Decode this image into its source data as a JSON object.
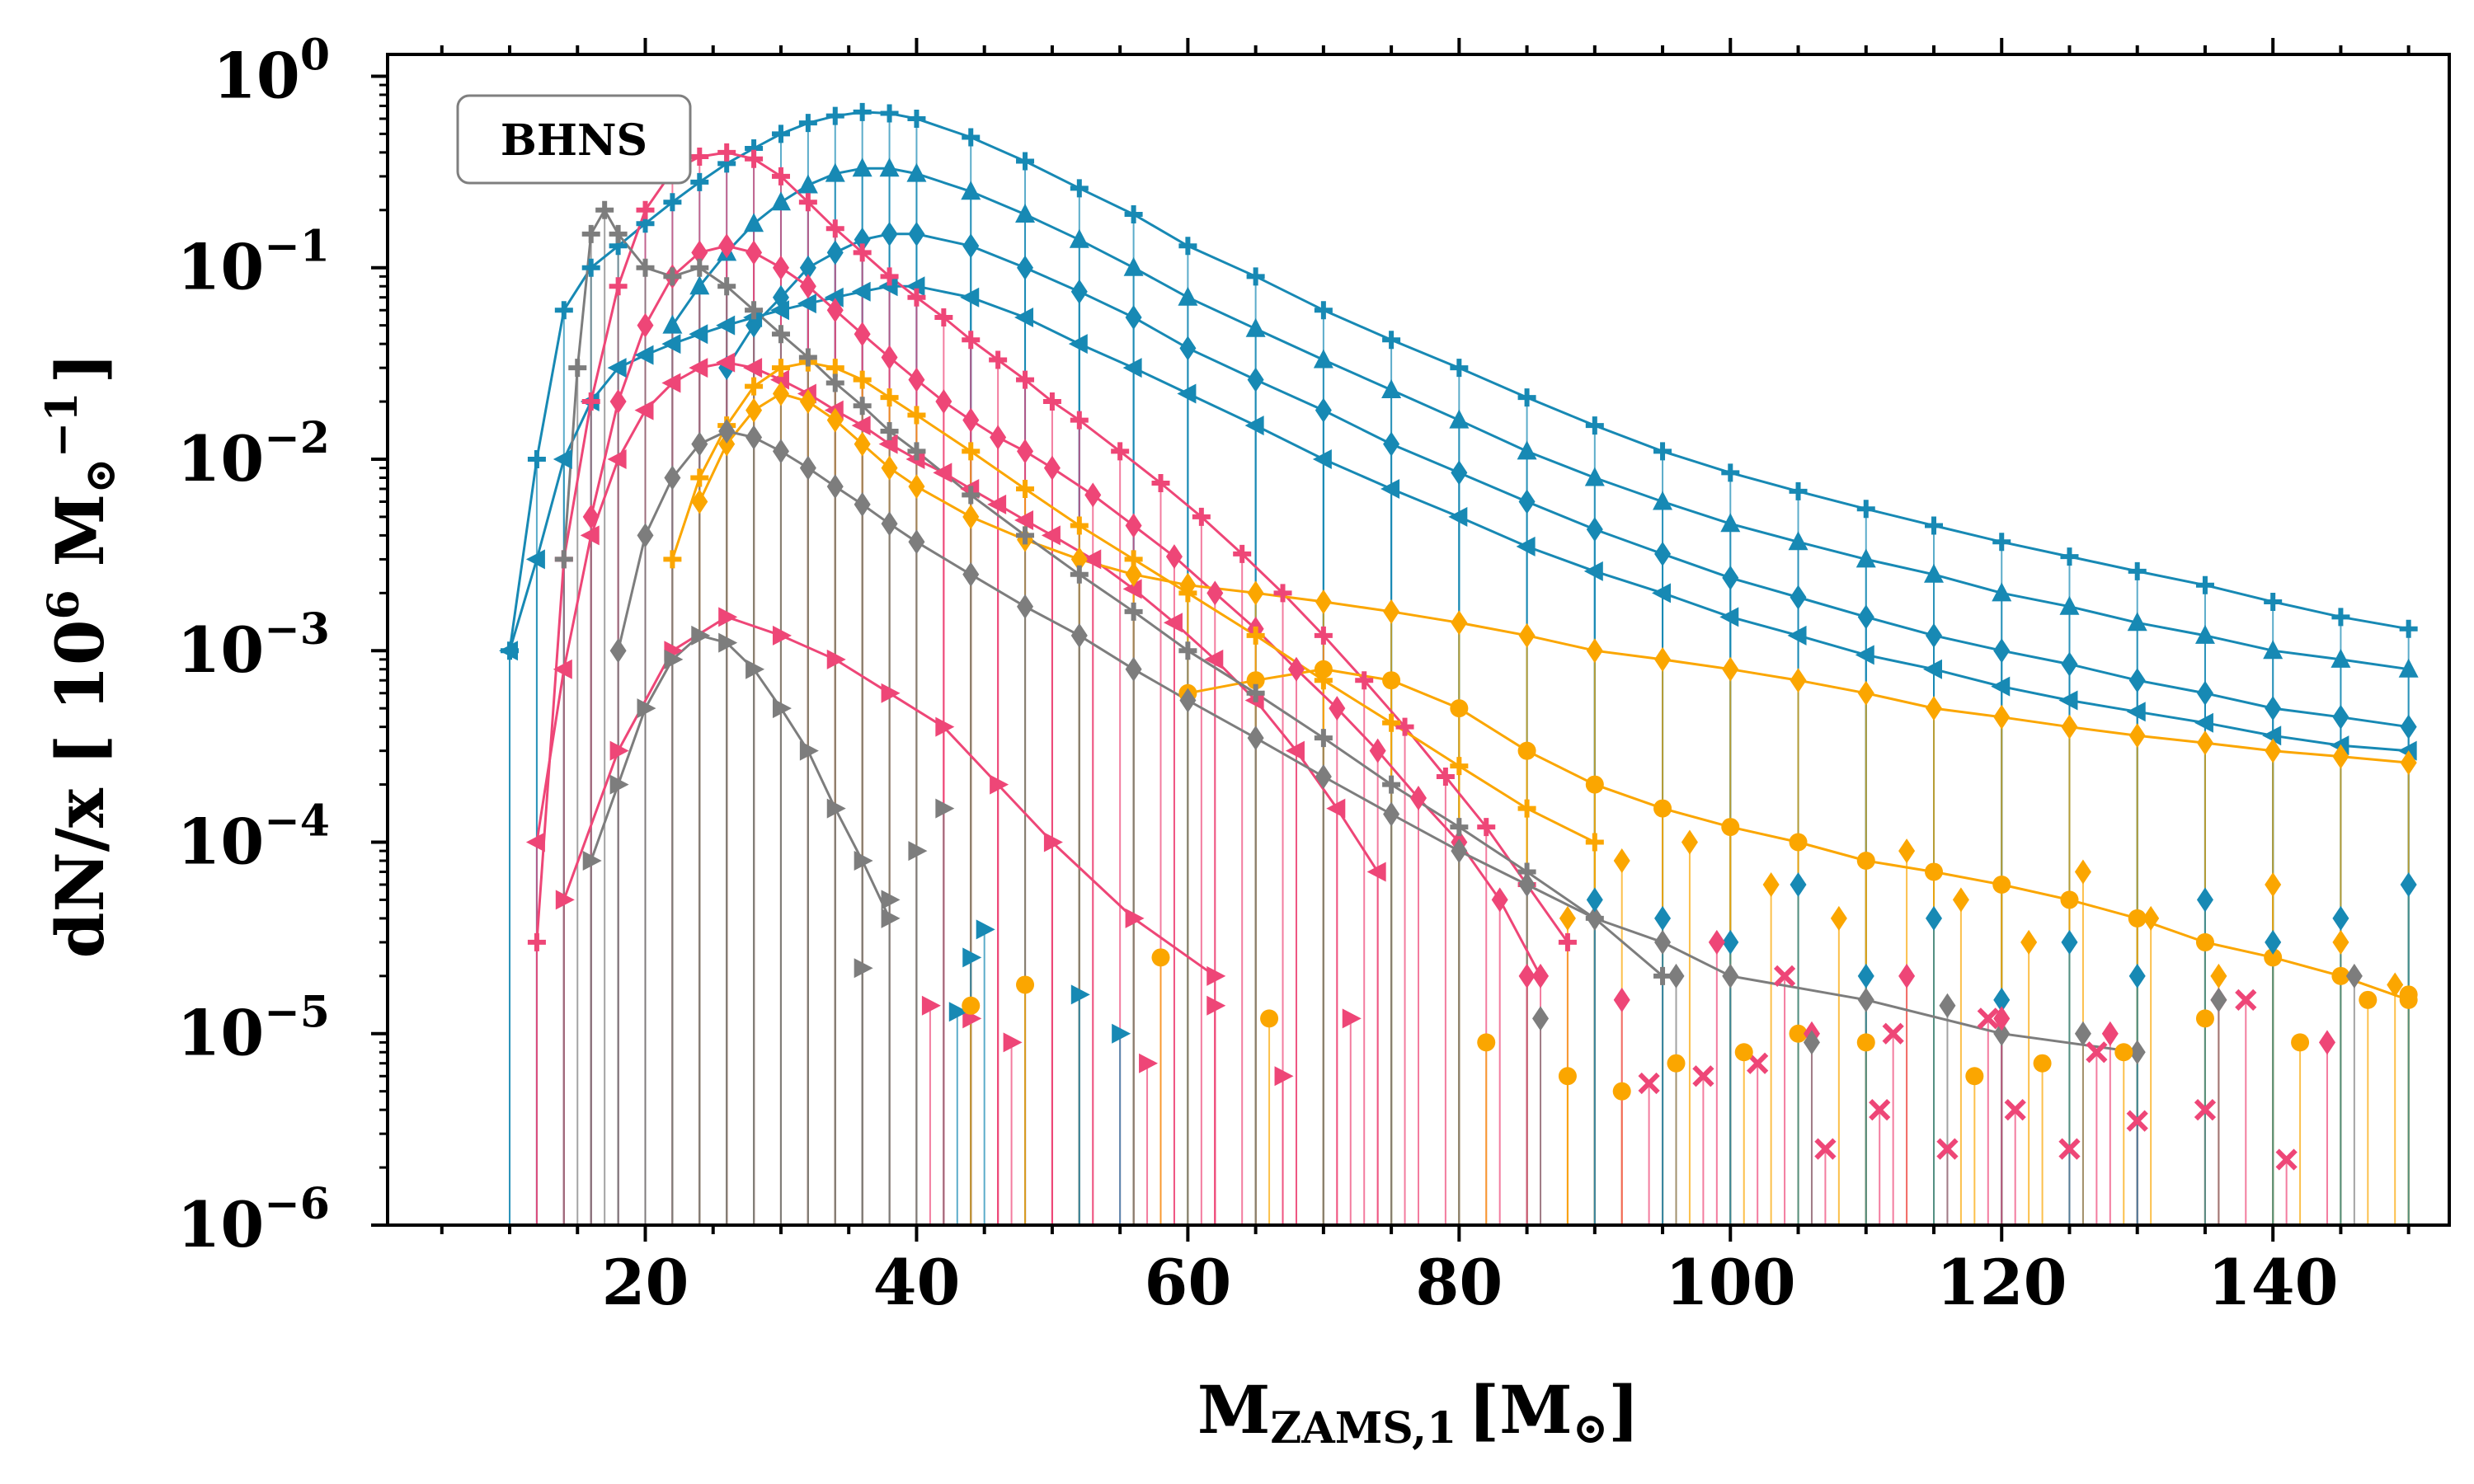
{
  "chart_data": {
    "type": "scatter",
    "title": "",
    "annotation": "BHNS",
    "xlabel": {
      "main": "M",
      "subscript": "ZAMS,1",
      "unit": "[M",
      "unit_symbol": "⊙",
      "unit_close": "]"
    },
    "ylabel": {
      "main": "dN/x [ 10",
      "power": "6",
      "unit": " M",
      "unit_symbol": "⊙",
      "unit_power": "−1",
      "close": "]"
    },
    "x_range": [
      1,
      153
    ],
    "y_range": [
      1e-06,
      1.3
    ],
    "y_scale": "log",
    "x_ticks": [
      {
        "value": 20,
        "label": "20"
      },
      {
        "value": 40,
        "label": "40"
      },
      {
        "value": 60,
        "label": "60"
      },
      {
        "value": 80,
        "label": "80"
      },
      {
        "value": 100,
        "label": "100"
      },
      {
        "value": 120,
        "label": "120"
      },
      {
        "value": 140,
        "label": "140"
      }
    ],
    "y_ticks": [
      {
        "value": 1,
        "base": "10",
        "exp": "0"
      },
      {
        "value": 0.1,
        "base": "10",
        "exp": "−1"
      },
      {
        "value": 0.01,
        "base": "10",
        "exp": "−2"
      },
      {
        "value": 0.001,
        "base": "10",
        "exp": "−3"
      },
      {
        "value": 0.0001,
        "base": "10",
        "exp": "−4"
      },
      {
        "value": 1e-05,
        "base": "10",
        "exp": "−5"
      },
      {
        "value": 1e-06,
        "base": "10",
        "exp": "−6"
      }
    ],
    "grid": false,
    "legend": "none",
    "colors": {
      "blue": "#1789b4",
      "pink": "#ee4677",
      "orange": "#fba600",
      "gray": "#7d7d7d"
    },
    "series": [
      {
        "color": "blue",
        "marker": "plus",
        "x": [
          10,
          12,
          14,
          16,
          18,
          20,
          22,
          24,
          26,
          28,
          30,
          32,
          34,
          36,
          38,
          40,
          44,
          48,
          52,
          56,
          60,
          65,
          70,
          75,
          80,
          85,
          90,
          95,
          100,
          105,
          110,
          115,
          120,
          125,
          130,
          135,
          140,
          145,
          150
        ],
        "y": [
          0.001,
          0.01,
          0.06,
          0.1,
          0.13,
          0.17,
          0.22,
          0.28,
          0.35,
          0.42,
          0.5,
          0.57,
          0.62,
          0.65,
          0.64,
          0.6,
          0.48,
          0.36,
          0.26,
          0.19,
          0.13,
          0.09,
          0.06,
          0.042,
          0.03,
          0.021,
          0.015,
          0.011,
          0.0085,
          0.0068,
          0.0055,
          0.0045,
          0.0037,
          0.0031,
          0.0026,
          0.0022,
          0.0018,
          0.0015,
          0.0013
        ]
      },
      {
        "color": "blue",
        "marker": "triangle-up",
        "x": [
          22,
          24,
          26,
          28,
          30,
          32,
          34,
          36,
          38,
          40,
          44,
          48,
          52,
          56,
          60,
          65,
          70,
          75,
          80,
          85,
          90,
          95,
          100,
          105,
          110,
          115,
          120,
          125,
          130,
          135,
          140,
          145,
          150
        ],
        "y": [
          0.05,
          0.08,
          0.12,
          0.17,
          0.22,
          0.27,
          0.31,
          0.33,
          0.33,
          0.31,
          0.25,
          0.19,
          0.14,
          0.1,
          0.07,
          0.048,
          0.033,
          0.023,
          0.016,
          0.011,
          0.008,
          0.006,
          0.0046,
          0.0037,
          0.003,
          0.0025,
          0.002,
          0.0017,
          0.0014,
          0.0012,
          0.001,
          0.0009,
          0.0008
        ]
      },
      {
        "color": "blue",
        "marker": "diamond",
        "x": [
          26,
          28,
          30,
          32,
          34,
          36,
          38,
          40,
          44,
          48,
          52,
          56,
          60,
          65,
          70,
          75,
          80,
          85,
          90,
          95,
          100,
          105,
          110,
          115,
          120,
          125,
          130,
          135,
          140,
          145,
          150
        ],
        "y": [
          0.03,
          0.05,
          0.07,
          0.1,
          0.12,
          0.14,
          0.15,
          0.15,
          0.13,
          0.1,
          0.075,
          0.055,
          0.038,
          0.026,
          0.018,
          0.012,
          0.0085,
          0.006,
          0.0043,
          0.0032,
          0.0024,
          0.0019,
          0.0015,
          0.0012,
          0.001,
          0.00085,
          0.0007,
          0.0006,
          0.0005,
          0.00045,
          0.0004
        ]
      },
      {
        "color": "blue",
        "marker": "triangle-left",
        "x": [
          10,
          12,
          14,
          16,
          18,
          20,
          22,
          24,
          26,
          28,
          30,
          32,
          34,
          36,
          38,
          40,
          44,
          48,
          52,
          56,
          60,
          65,
          70,
          75,
          80,
          85,
          90,
          95,
          100,
          105,
          110,
          115,
          120,
          125,
          130,
          135,
          140,
          145,
          150
        ],
        "y": [
          0.001,
          0.003,
          0.01,
          0.02,
          0.03,
          0.035,
          0.04,
          0.045,
          0.05,
          0.055,
          0.06,
          0.065,
          0.07,
          0.075,
          0.08,
          0.08,
          0.07,
          0.055,
          0.04,
          0.03,
          0.022,
          0.015,
          0.01,
          0.007,
          0.005,
          0.0035,
          0.0026,
          0.002,
          0.0015,
          0.0012,
          0.00095,
          0.0008,
          0.00065,
          0.00055,
          0.00048,
          0.00042,
          0.00036,
          0.00032,
          0.0003
        ]
      },
      {
        "color": "pink",
        "marker": "plus",
        "x": [
          12,
          14,
          16,
          18,
          20,
          22,
          24,
          26,
          28,
          30,
          32,
          34,
          36,
          38,
          40,
          42,
          44,
          46,
          48,
          50,
          52,
          55,
          58,
          61,
          64,
          67,
          70,
          73,
          76,
          79,
          82,
          85,
          88
        ],
        "y": [
          3e-05,
          0.003,
          0.02,
          0.08,
          0.2,
          0.32,
          0.38,
          0.4,
          0.37,
          0.3,
          0.22,
          0.16,
          0.12,
          0.09,
          0.07,
          0.055,
          0.042,
          0.033,
          0.026,
          0.02,
          0.016,
          0.011,
          0.0075,
          0.005,
          0.0032,
          0.002,
          0.0012,
          0.0007,
          0.0004,
          0.00022,
          0.00012,
          6e-05,
          3e-05
        ]
      },
      {
        "color": "pink",
        "marker": "diamond",
        "x": [
          16,
          18,
          20,
          22,
          24,
          26,
          28,
          30,
          32,
          34,
          36,
          38,
          40,
          42,
          44,
          46,
          48,
          50,
          53,
          56,
          59,
          62,
          65,
          68,
          71,
          74,
          77,
          80,
          83,
          86
        ],
        "y": [
          0.005,
          0.02,
          0.05,
          0.09,
          0.12,
          0.13,
          0.12,
          0.1,
          0.08,
          0.06,
          0.045,
          0.034,
          0.026,
          0.02,
          0.016,
          0.013,
          0.011,
          0.009,
          0.0065,
          0.0045,
          0.0031,
          0.002,
          0.0013,
          0.0008,
          0.0005,
          0.0003,
          0.00017,
          0.0001,
          5e-05,
          2e-05
        ]
      },
      {
        "color": "pink",
        "marker": "triangle-left",
        "x": [
          12,
          14,
          16,
          18,
          20,
          22,
          24,
          26,
          28,
          30,
          32,
          34,
          36,
          38,
          40,
          42,
          44,
          46,
          48,
          50,
          53,
          56,
          59,
          62,
          65,
          68,
          71,
          74
        ],
        "y": [
          0.0001,
          0.0008,
          0.004,
          0.01,
          0.018,
          0.025,
          0.03,
          0.032,
          0.03,
          0.026,
          0.022,
          0.018,
          0.015,
          0.012,
          0.01,
          0.0085,
          0.007,
          0.0058,
          0.0048,
          0.004,
          0.003,
          0.0021,
          0.0014,
          0.0009,
          0.00055,
          0.0003,
          0.00015,
          7e-05
        ]
      },
      {
        "color": "pink",
        "marker": "triangle-right",
        "x": [
          14,
          18,
          22,
          26,
          30,
          34,
          38,
          42,
          46,
          50,
          56,
          62
        ],
        "y": [
          5e-05,
          0.0003,
          0.001,
          0.0015,
          0.0012,
          0.0009,
          0.0006,
          0.0004,
          0.0002,
          0.0001,
          4e-05,
          2e-05
        ]
      },
      {
        "color": "orange",
        "marker": "plus",
        "x": [
          22,
          24,
          26,
          28,
          30,
          32,
          34,
          36,
          38,
          40,
          44,
          48,
          52,
          56,
          60,
          65,
          70,
          75,
          80,
          85,
          90
        ],
        "y": [
          0.003,
          0.008,
          0.015,
          0.024,
          0.03,
          0.032,
          0.03,
          0.026,
          0.021,
          0.017,
          0.011,
          0.007,
          0.0045,
          0.003,
          0.002,
          0.0012,
          0.0007,
          0.00042,
          0.00025,
          0.00015,
          0.0001
        ]
      },
      {
        "color": "orange",
        "marker": "diamond",
        "x": [
          24,
          26,
          28,
          30,
          32,
          34,
          36,
          38,
          40,
          44,
          48,
          52,
          56,
          60,
          65,
          70,
          75,
          80,
          85,
          90,
          95,
          100,
          105,
          110,
          115,
          120,
          125,
          130,
          135,
          140,
          145,
          150
        ],
        "y": [
          0.006,
          0.012,
          0.018,
          0.022,
          0.02,
          0.016,
          0.012,
          0.009,
          0.0072,
          0.005,
          0.0038,
          0.003,
          0.0025,
          0.0022,
          0.002,
          0.0018,
          0.0016,
          0.0014,
          0.0012,
          0.001,
          0.0009,
          0.0008,
          0.0007,
          0.0006,
          0.0005,
          0.00045,
          0.0004,
          0.00036,
          0.00033,
          0.0003,
          0.00028,
          0.00026
        ]
      },
      {
        "color": "orange",
        "marker": "circle",
        "x": [
          60,
          65,
          70,
          75,
          80,
          85,
          90,
          95,
          100,
          105,
          110,
          115,
          120,
          125,
          130,
          135,
          140,
          145,
          150
        ],
        "y": [
          0.0006,
          0.0007,
          0.0008,
          0.0007,
          0.0005,
          0.0003,
          0.0002,
          0.00015,
          0.00012,
          0.0001,
          8e-05,
          7e-05,
          6e-05,
          5e-05,
          4e-05,
          3e-05,
          2.5e-05,
          2e-05,
          1.5e-05
        ]
      },
      {
        "color": "gray",
        "marker": "plus",
        "x": [
          14,
          15,
          16,
          17,
          18,
          20,
          22,
          24,
          26,
          28,
          30,
          32,
          34,
          36,
          38,
          40,
          44,
          48,
          52,
          56,
          60,
          65,
          70,
          75,
          80,
          85,
          90,
          95
        ],
        "y": [
          0.003,
          0.03,
          0.15,
          0.2,
          0.15,
          0.1,
          0.09,
          0.1,
          0.08,
          0.06,
          0.045,
          0.034,
          0.025,
          0.019,
          0.014,
          0.011,
          0.0065,
          0.004,
          0.0025,
          0.0016,
          0.001,
          0.0006,
          0.00035,
          0.0002,
          0.00012,
          7e-05,
          4e-05,
          2e-05
        ]
      },
      {
        "color": "gray",
        "marker": "diamond",
        "x": [
          18,
          20,
          22,
          24,
          26,
          28,
          30,
          32,
          34,
          36,
          38,
          40,
          44,
          48,
          52,
          56,
          60,
          65,
          70,
          75,
          80,
          85,
          90,
          95,
          100,
          110,
          120,
          130
        ],
        "y": [
          0.001,
          0.004,
          0.008,
          0.012,
          0.014,
          0.013,
          0.011,
          0.009,
          0.0072,
          0.0058,
          0.0046,
          0.0037,
          0.0025,
          0.0017,
          0.0012,
          0.0008,
          0.00055,
          0.00035,
          0.00022,
          0.00014,
          9e-05,
          6e-05,
          4e-05,
          3e-05,
          2e-05,
          1.5e-05,
          1e-05,
          8e-06
        ]
      },
      {
        "color": "gray",
        "marker": "triangle-right",
        "x": [
          16,
          18,
          20,
          22,
          24,
          26,
          28,
          30,
          32,
          34,
          36,
          38
        ],
        "y": [
          8e-05,
          0.0002,
          0.0005,
          0.0009,
          0.0012,
          0.0011,
          0.0008,
          0.0005,
          0.0003,
          0.00015,
          8e-05,
          4e-05
        ]
      }
    ],
    "scatter": [
      {
        "color": "pink",
        "marker": "x",
        "x": [
          94,
          98,
          102,
          107,
          111,
          116,
          121,
          125,
          130,
          135,
          141,
          104,
          112,
          119,
          127,
          138
        ],
        "y": [
          5.5e-06,
          6e-06,
          7e-06,
          2.5e-06,
          4e-06,
          2.5e-06,
          4e-06,
          2.5e-06,
          3.5e-06,
          4e-06,
          2.2e-06,
          2e-05,
          1e-05,
          1.2e-05,
          8e-06,
          1.5e-05
        ]
      },
      {
        "color": "pink",
        "marker": "triangle-right",
        "x": [
          41,
          44,
          47,
          57,
          62,
          67,
          72
        ],
        "y": [
          1.4e-05,
          1.2e-05,
          9e-06,
          7e-06,
          1.4e-05,
          6e-06,
          1.2e-05
        ]
      },
      {
        "color": "blue",
        "marker": "triangle-right",
        "x": [
          43,
          44,
          45,
          52,
          55
        ],
        "y": [
          1.3e-05,
          2.5e-05,
          3.5e-05,
          1.6e-05,
          1e-05
        ]
      },
      {
        "color": "gray",
        "marker": "triangle-right",
        "x": [
          36,
          38,
          40,
          42
        ],
        "y": [
          2.2e-05,
          5e-05,
          9e-05,
          0.00015
        ]
      },
      {
        "color": "orange",
        "marker": "circle",
        "x": [
          44,
          48,
          58,
          66,
          82,
          88,
          92,
          96,
          101,
          105,
          110,
          118,
          123,
          129,
          135,
          142,
          147,
          150
        ],
        "y": [
          1.4e-05,
          1.8e-05,
          2.5e-05,
          1.2e-05,
          9e-06,
          6e-06,
          5e-06,
          7e-06,
          8e-06,
          1e-05,
          9e-06,
          6e-06,
          7e-06,
          8e-06,
          1.2e-05,
          9e-06,
          1.5e-05,
          1.6e-05
        ]
      },
      {
        "color": "orange",
        "marker": "diamond",
        "x": [
          88,
          92,
          97,
          103,
          108,
          113,
          117,
          122,
          126,
          131,
          136,
          140,
          145,
          149
        ],
        "y": [
          4e-05,
          8e-05,
          0.0001,
          6e-05,
          4e-05,
          9e-05,
          5e-05,
          3e-05,
          7e-05,
          4e-05,
          2e-05,
          6e-05,
          3e-05,
          1.8e-05
        ]
      },
      {
        "color": "blue",
        "marker": "diamond",
        "x": [
          90,
          95,
          100,
          105,
          110,
          115,
          120,
          125,
          130,
          135,
          140,
          145,
          150
        ],
        "y": [
          5e-05,
          4e-05,
          3e-05,
          6e-05,
          2e-05,
          4e-05,
          1.5e-05,
          3e-05,
          2e-05,
          5e-05,
          3e-05,
          4e-05,
          6e-05
        ]
      },
      {
        "color": "pink",
        "marker": "diamond",
        "x": [
          85,
          92,
          99,
          106,
          113,
          120,
          128,
          136,
          144
        ],
        "y": [
          2e-05,
          1.5e-05,
          3e-05,
          1e-05,
          2e-05,
          1.2e-05,
          1e-05,
          1.5e-05,
          9e-06
        ]
      },
      {
        "color": "gray",
        "marker": "diamond",
        "x": [
          86,
          96,
          106,
          116,
          126,
          136,
          146
        ],
        "y": [
          1.2e-05,
          2e-05,
          9e-06,
          1.4e-05,
          1e-05,
          1.5e-05,
          2e-05
        ]
      }
    ]
  }
}
